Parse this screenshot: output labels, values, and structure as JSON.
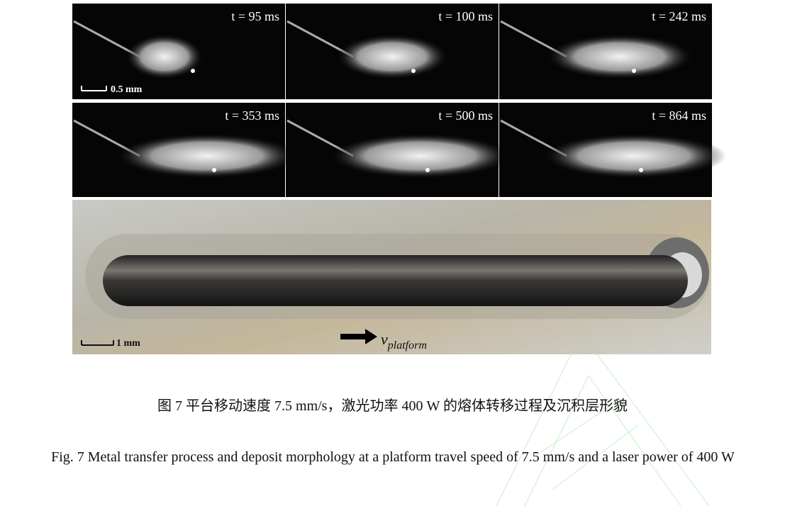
{
  "figure": {
    "frames": [
      {
        "time": "t = 95 ms"
      },
      {
        "time": "t = 100 ms"
      },
      {
        "time": "t = 242 ms"
      },
      {
        "time": "t = 353 ms"
      },
      {
        "time": "t = 500 ms"
      },
      {
        "time": "t = 864 ms"
      }
    ],
    "frame_scale_bar": "0.5 mm",
    "photo_scale_bar": "1 mm",
    "velocity": {
      "symbol": "v",
      "subscript": "platform"
    },
    "caption_cn": "图 7  平台移动速度 7.5 mm/s，激光功率 400 W 的熔体转移过程及沉积层形貌",
    "caption_en": "Fig. 7 Metal transfer process and deposit morphology at a platform travel speed of 7.5 mm/s and a laser power of 400 W"
  }
}
